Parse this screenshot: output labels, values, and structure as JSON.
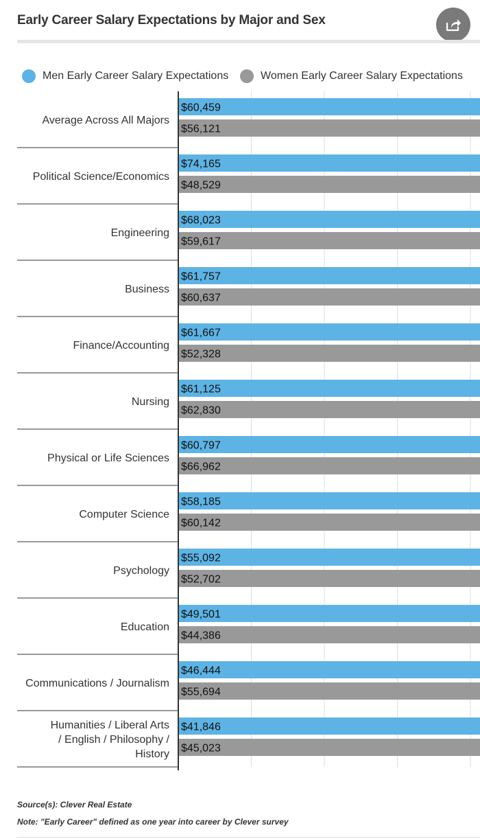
{
  "title": "Early Career Salary Expectations by Major and Sex",
  "share_icon": "share-icon",
  "colors": {
    "men": "#5db3e4",
    "women": "#999999",
    "axis": "#333333",
    "grid": "#dddddd"
  },
  "legend": {
    "men": "Men Early Career Salary Expectations",
    "women": "Women Early Career Salary Expectations"
  },
  "chart_data": {
    "type": "bar",
    "orientation": "horizontal",
    "title": "Early Career Salary Expectations by Major and Sex",
    "categories": [
      "Average Across All Majors",
      "Political Science/Economics",
      "Engineering",
      "Business",
      "Finance/Accounting",
      "Nursing",
      "Physical or Life Sciences",
      "Computer Science",
      "Psychology",
      "Education",
      "Communications / Journalism",
      "Humanities / Liberal Arts / English / Philosophy / History"
    ],
    "series": [
      {
        "name": "Men Early Career Salary Expectations",
        "values": [
          60459,
          74165,
          68023,
          61757,
          61667,
          61125,
          60797,
          58185,
          55092,
          49501,
          46444,
          41846
        ],
        "labels": [
          "$60,459",
          "$74,165",
          "$68,023",
          "$61,757",
          "$61,667",
          "$61,125",
          "$60,797",
          "$58,185",
          "$55,092",
          "$49,501",
          "$46,444",
          "$41,846"
        ]
      },
      {
        "name": "Women Early Career Salary Expectations",
        "values": [
          56121,
          48529,
          59617,
          60637,
          52328,
          62830,
          66962,
          60142,
          52702,
          44386,
          55694,
          45023
        ],
        "labels": [
          "$56,121",
          "$48,529",
          "$59,617",
          "$60,637",
          "$52,328",
          "$62,830",
          "$66,962",
          "$60,142",
          "$52,702",
          "$44,386",
          "$55,694",
          "$45,023"
        ]
      }
    ],
    "xlim": [
      0,
      80000
    ],
    "grid": true,
    "legend_position": "top"
  },
  "footer": {
    "source": "Source(s): Clever Real Estate",
    "note": "Note: \"Early Career\" defined as one year into career by Clever survey"
  }
}
